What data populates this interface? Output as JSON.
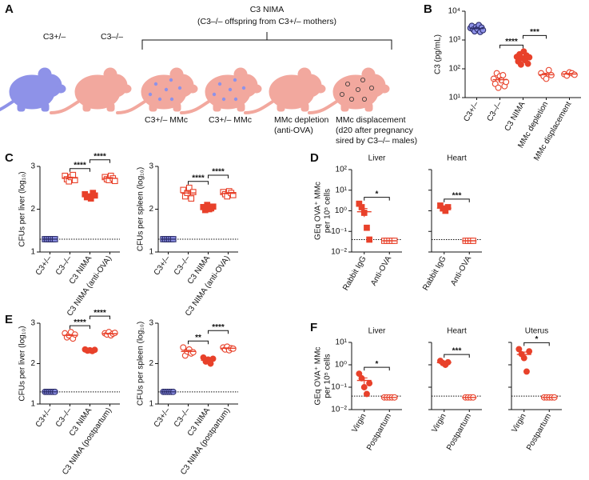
{
  "panel_labels": [
    "A",
    "B",
    "C",
    "D",
    "E",
    "F"
  ],
  "diagram": {
    "labels": [
      "C3+/–",
      "C3–/–"
    ],
    "group_title": "C3 NIMA",
    "group_subtitle": "(C3–/– offspring from C3+/– mothers)",
    "captions": [
      [
        "C3+/– MMc"
      ],
      [
        "C3+/– MMc"
      ],
      [
        "MMc depletion",
        "(anti-OVA)"
      ],
      [
        "MMc displacement",
        "(d20 after pregnancy",
        "sired by C3–/– males)"
      ]
    ]
  },
  "chart_data": [
    {
      "type": "dot",
      "ylabel": "C3 (pg/mL)",
      "log": true,
      "ylim": [
        10,
        10000
      ],
      "yticks": [
        {
          "value": 10,
          "label": "10¹"
        },
        {
          "value": 100,
          "label": "10²"
        },
        {
          "value": 1000,
          "label": "10³"
        },
        {
          "value": 10000,
          "label": "10⁴"
        }
      ],
      "categories": [
        "C3+/–",
        "C3–/–",
        "C3 NIMA",
        "MMc depletion",
        "MMc displacement"
      ],
      "colors": [
        "#8e92e8",
        "#e8412a",
        "#e8412a",
        "#e8412a",
        "#e8412a"
      ],
      "fill": [
        "filled",
        "open",
        "filled",
        "open",
        "open"
      ],
      "marker": "circle",
      "points": [
        [
          2600,
          3100,
          2300,
          2000,
          2800,
          2400,
          3300,
          1900,
          2700,
          2200
        ],
        [
          45,
          30,
          70,
          22,
          55,
          40,
          60,
          25,
          35
        ],
        [
          260,
          180,
          320,
          140,
          230,
          400,
          200,
          290,
          150,
          250
        ],
        [
          70,
          55,
          45,
          90,
          60
        ],
        [
          65,
          58,
          75,
          70,
          62
        ]
      ],
      "means": [
        2500,
        42,
        230,
        62,
        66
      ],
      "sem": [
        150,
        6,
        25,
        8,
        3
      ],
      "significance": [
        {
          "between": [
            1,
            2
          ],
          "label": "****"
        },
        {
          "between": [
            2,
            3
          ],
          "label": "***"
        }
      ]
    },
    {
      "type": "dot",
      "ylabel": "CFUs per liver (log₁₀)",
      "ylim": [
        1,
        3
      ],
      "yticks": [
        1,
        2,
        3
      ],
      "detection_limit": 1.3,
      "categories": [
        "C3+/–",
        "C3–/–",
        "C3 NIMA",
        "C3 NIMA (anti-OVA)"
      ],
      "colors": [
        "#8e92e8",
        "#e8412a",
        "#e8412a",
        "#e8412a"
      ],
      "fill": [
        "filled",
        "open",
        "filled",
        "open"
      ],
      "marker": "square",
      "points": [
        [
          1.3,
          1.3,
          1.3,
          1.3,
          1.3,
          1.3
        ],
        [
          2.78,
          2.7,
          2.65,
          2.75,
          2.8,
          2.68
        ],
        [
          2.35,
          2.28,
          2.3,
          2.25,
          2.38,
          2.32
        ],
        [
          2.75,
          2.7,
          2.68,
          2.78,
          2.72,
          2.66
        ]
      ],
      "means": [
        1.3,
        2.73,
        2.31,
        2.72
      ],
      "sem": [
        0,
        0.02,
        0.02,
        0.02
      ],
      "significance": [
        {
          "between": [
            1,
            2
          ],
          "label": "****"
        },
        {
          "between": [
            2,
            3
          ],
          "label": "****"
        }
      ]
    },
    {
      "type": "dot",
      "ylabel": "CFUs per spleen (log₁₀)",
      "ylim": [
        1,
        3
      ],
      "yticks": [
        1,
        2,
        3
      ],
      "detection_limit": 1.3,
      "categories": [
        "C3+/–",
        "C3–/–",
        "C3 NIMA",
        "C3 NIMA (anti-OVA)"
      ],
      "colors": [
        "#8e92e8",
        "#e8412a",
        "#e8412a",
        "#e8412a"
      ],
      "fill": [
        "filled",
        "open",
        "filled",
        "open"
      ],
      "marker": "square",
      "points": [
        [
          1.3,
          1.3,
          1.3,
          1.3,
          1.3,
          1.3
        ],
        [
          2.45,
          2.3,
          2.38,
          2.5,
          2.25,
          2.4
        ],
        [
          2.05,
          1.98,
          2.1,
          2.0,
          2.02,
          2.06
        ],
        [
          2.4,
          2.35,
          2.3,
          2.42,
          2.38,
          2.33
        ]
      ],
      "means": [
        1.3,
        2.38,
        2.03,
        2.37
      ],
      "sem": [
        0,
        0.04,
        0.02,
        0.02
      ],
      "significance": [
        {
          "between": [
            1,
            2
          ],
          "label": "****"
        },
        {
          "between": [
            2,
            3
          ],
          "label": "****"
        }
      ]
    },
    {
      "type": "dot",
      "title": "Liver",
      "ylabel": [
        "GEq OVA⁺ MMc",
        "per 10⁵ cells"
      ],
      "log": true,
      "ylim": [
        0.01,
        100
      ],
      "yticks": [
        {
          "value": 0.01,
          "label": "10⁻²"
        },
        {
          "value": 0.1,
          "label": "10⁻¹"
        },
        {
          "value": 1,
          "label": "10⁰"
        },
        {
          "value": 10,
          "label": "10¹"
        },
        {
          "value": 100,
          "label": "10²"
        }
      ],
      "detection_limit": 0.04,
      "categories": [
        "Rabbit IgG",
        "Anti-OVA"
      ],
      "colors": [
        "#e8412a",
        "#e8412a"
      ],
      "fill": [
        "filled",
        "open"
      ],
      "marker": "square",
      "points": [
        [
          2.2,
          1.5,
          0.8,
          0.15,
          0.04
        ],
        [
          0.035,
          0.035,
          0.035,
          0.035,
          0.035
        ]
      ],
      "means": [
        0.9,
        0.035
      ],
      "sem": [
        0.4,
        0
      ],
      "significance": [
        {
          "between": [
            0,
            1
          ],
          "label": "*"
        }
      ]
    },
    {
      "type": "dot",
      "title": "Heart",
      "log": true,
      "ylim": [
        0.01,
        100
      ],
      "yticks": [
        0.01,
        0.1,
        1,
        10,
        100
      ],
      "tick_labels": false,
      "detection_limit": 0.04,
      "categories": [
        "Rabbit IgG",
        "Anti-OVA"
      ],
      "colors": [
        "#e8412a",
        "#e8412a"
      ],
      "fill": [
        "filled",
        "open"
      ],
      "marker": "square",
      "points": [
        [
          1.8,
          1.3,
          1.0,
          1.5
        ],
        [
          0.035,
          0.035,
          0.035,
          0.035
        ]
      ],
      "means": [
        1.35,
        0.035
      ],
      "sem": [
        0.2,
        0
      ],
      "significance": [
        {
          "between": [
            0,
            1
          ],
          "label": "***"
        }
      ]
    },
    {
      "type": "dot",
      "ylabel": "CFUs per liver (log₁₀)",
      "ylim": [
        1,
        3
      ],
      "yticks": [
        1,
        2,
        3
      ],
      "detection_limit": 1.3,
      "categories": [
        "C3+/–",
        "C3–/–",
        "C3 NIMA",
        "C3 NIMA (postpartum)"
      ],
      "colors": [
        "#8e92e8",
        "#e8412a",
        "#e8412a",
        "#e8412a"
      ],
      "fill": [
        "filled",
        "open",
        "filled",
        "open"
      ],
      "marker": "circle",
      "points": [
        [
          1.3,
          1.3,
          1.3,
          1.3,
          1.3,
          1.3
        ],
        [
          2.75,
          2.65,
          2.7,
          2.78,
          2.62,
          2.72
        ],
        [
          2.35,
          2.32,
          2.33,
          2.31,
          2.34
        ],
        [
          2.75,
          2.72,
          2.78,
          2.7,
          2.74,
          2.76
        ]
      ],
      "means": [
        1.3,
        2.7,
        2.33,
        2.74
      ],
      "sem": [
        0,
        0.02,
        0.01,
        0.01
      ],
      "significance": [
        {
          "between": [
            1,
            2
          ],
          "label": "****"
        },
        {
          "between": [
            2,
            3
          ],
          "label": "****"
        }
      ]
    },
    {
      "type": "dot",
      "ylabel": "CFUs per spleen (log₁₀)",
      "ylim": [
        1,
        3
      ],
      "yticks": [
        1,
        2,
        3
      ],
      "detection_limit": 1.3,
      "categories": [
        "C3+/–",
        "C3–/–",
        "C3 NIMA",
        "C3 NIMA (postpartum)"
      ],
      "colors": [
        "#8e92e8",
        "#e8412a",
        "#e8412a",
        "#e8412a"
      ],
      "fill": [
        "filled",
        "open",
        "filled",
        "open"
      ],
      "marker": "circle",
      "points": [
        [
          1.3,
          1.3,
          1.3,
          1.3,
          1.3,
          1.3
        ],
        [
          2.4,
          2.2,
          2.3,
          2.35,
          2.25,
          2.28
        ],
        [
          2.15,
          2.05,
          2.1,
          2.0,
          2.12
        ],
        [
          2.4,
          2.35,
          2.42,
          2.33,
          2.38,
          2.37
        ]
      ],
      "means": [
        1.3,
        2.3,
        2.08,
        2.38
      ],
      "sem": [
        0,
        0.03,
        0.02,
        0.01
      ],
      "significance": [
        {
          "between": [
            1,
            2
          ],
          "label": "**"
        },
        {
          "between": [
            2,
            3
          ],
          "label": "****"
        }
      ]
    },
    {
      "type": "dot",
      "title": "Liver",
      "ylabel": [
        "GEq OVA⁺ MMc",
        "per 10⁵ cells"
      ],
      "log": true,
      "ylim": [
        0.01,
        10
      ],
      "yticks": [
        {
          "value": 0.01,
          "label": "10⁻²"
        },
        {
          "value": 0.1,
          "label": "10⁻¹"
        },
        {
          "value": 1,
          "label": "10⁰"
        },
        {
          "value": 10,
          "label": "10¹"
        }
      ],
      "detection_limit": 0.04,
      "categories": [
        "Virgin",
        "Postpartum"
      ],
      "colors": [
        "#e8412a",
        "#e8412a"
      ],
      "fill": [
        "filled",
        "open"
      ],
      "marker": "circle",
      "points": [
        [
          0.4,
          0.25,
          0.1,
          0.05,
          0.15
        ],
        [
          0.035,
          0.035,
          0.035,
          0.035,
          0.035
        ]
      ],
      "means": [
        0.2,
        0.035
      ],
      "sem": [
        0.06,
        0
      ],
      "significance": [
        {
          "between": [
            0,
            1
          ],
          "label": "*"
        }
      ]
    },
    {
      "type": "dot",
      "title": "Heart",
      "log": true,
      "ylim": [
        0.01,
        10
      ],
      "yticks": [
        0.01,
        0.1,
        1,
        10
      ],
      "tick_labels": false,
      "detection_limit": 0.04,
      "categories": [
        "Virgin",
        "Postpartum"
      ],
      "colors": [
        "#e8412a",
        "#e8412a"
      ],
      "fill": [
        "filled",
        "open"
      ],
      "marker": "circle",
      "points": [
        [
          1.5,
          1.2,
          1.0,
          1.3
        ],
        [
          0.035,
          0.035,
          0.035,
          0.035
        ]
      ],
      "means": [
        1.25,
        0.035
      ],
      "sem": [
        0.1,
        0
      ],
      "significance": [
        {
          "between": [
            0,
            1
          ],
          "label": "***"
        }
      ]
    },
    {
      "type": "dot",
      "title": "Uterus",
      "log": true,
      "ylim": [
        0.01,
        10
      ],
      "yticks": [
        0.01,
        0.1,
        1,
        10
      ],
      "tick_labels": false,
      "detection_limit": 0.04,
      "categories": [
        "Virgin",
        "Postpartum"
      ],
      "colors": [
        "#e8412a",
        "#e8412a"
      ],
      "fill": [
        "filled",
        "open"
      ],
      "marker": "circle",
      "points": [
        [
          5,
          3,
          2,
          0.5,
          4
        ],
        [
          0.035,
          0.035,
          0.035,
          0.035,
          0.035
        ]
      ],
      "means": [
        2.9,
        0.035
      ],
      "sem": [
        0.8,
        0
      ],
      "significance": [
        {
          "between": [
            0,
            1
          ],
          "label": "*"
        }
      ]
    }
  ]
}
